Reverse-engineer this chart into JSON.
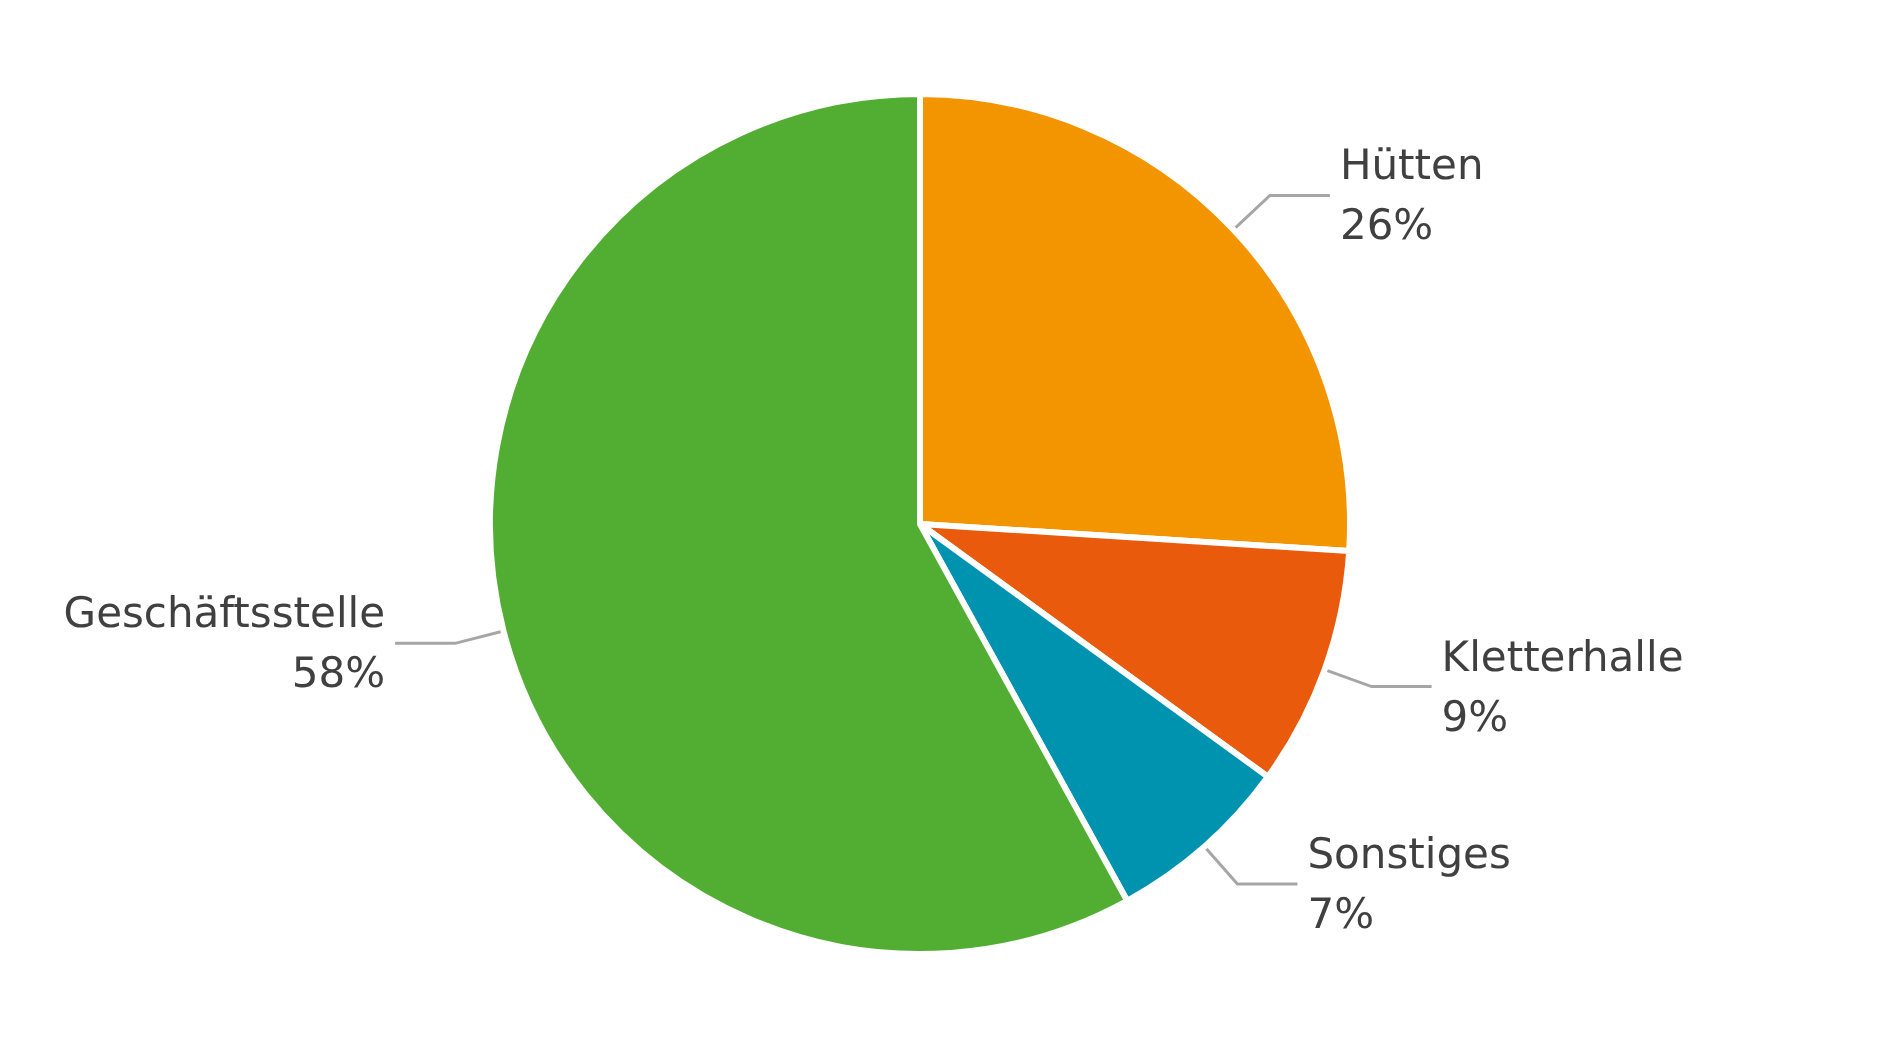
{
  "chart_data": {
    "type": "pie",
    "categories": [
      "Hütten",
      "Kletterhalle",
      "Sonstiges",
      "Geschäftsstelle"
    ],
    "values": [
      26,
      9,
      7,
      58
    ],
    "value_labels": [
      "26%",
      "9%",
      "7%",
      "58%"
    ],
    "colors": [
      "#f39500",
      "#e95a0c",
      "#0093b0",
      "#52ae32"
    ]
  }
}
